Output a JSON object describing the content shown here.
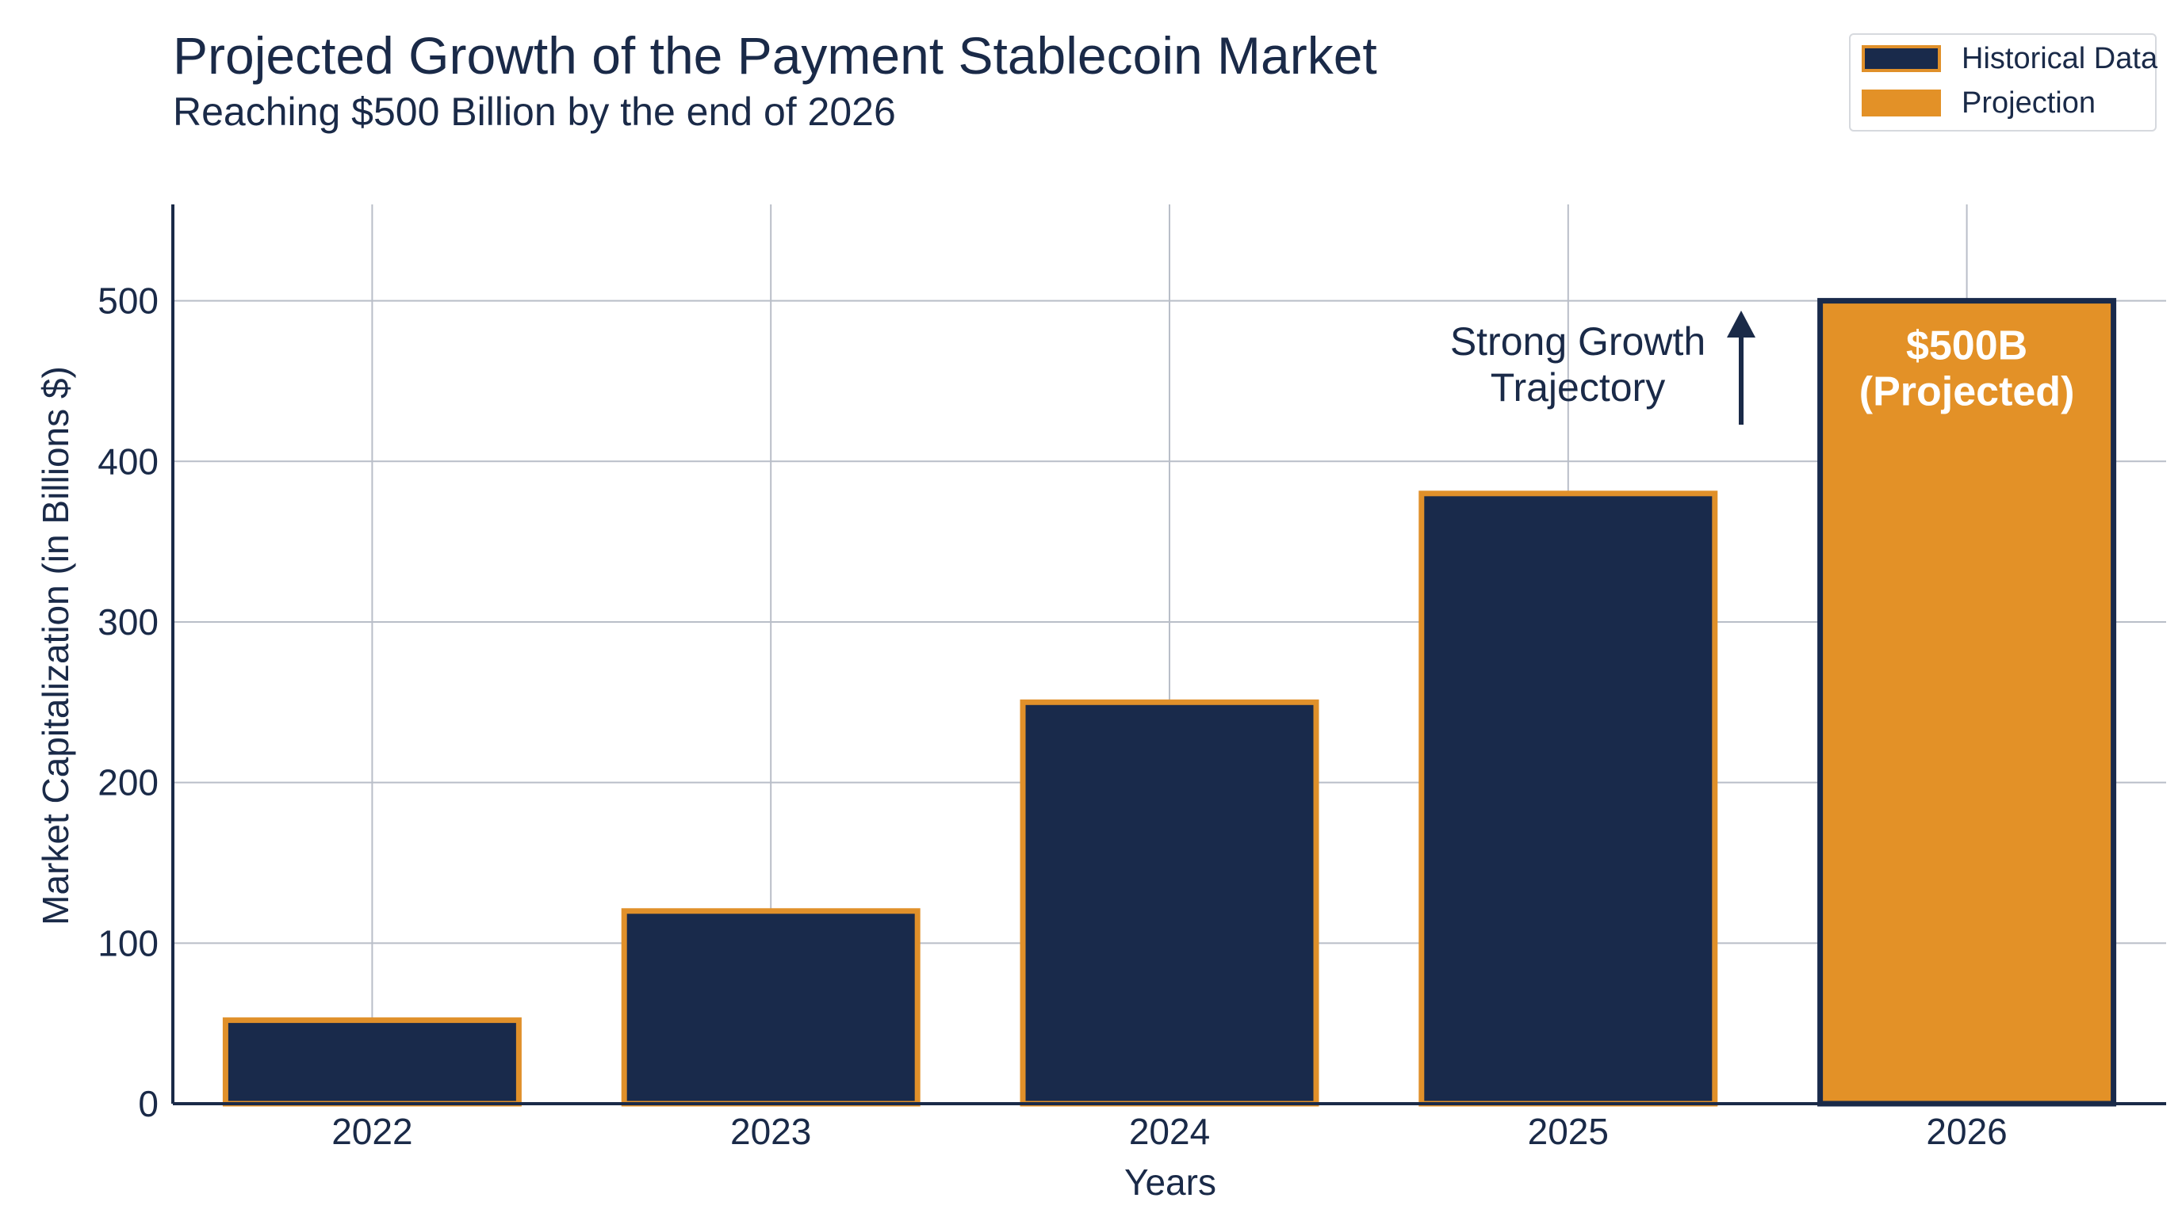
{
  "chart_data": {
    "type": "bar",
    "title": "Projected Growth of the Payment Stablecoin Market",
    "subtitle": "Reaching $500 Billion by the end of 2026",
    "xlabel": "Years",
    "ylabel": "Market Capitalization (in Billions $)",
    "categories": [
      "2022",
      "2023",
      "2024",
      "2025",
      "2026"
    ],
    "values": [
      52,
      120,
      250,
      380,
      500
    ],
    "kinds": [
      "historical",
      "historical",
      "historical",
      "historical",
      "projection"
    ],
    "ylim": [
      0,
      560
    ],
    "yticks": [
      0,
      100,
      200,
      300,
      400,
      500
    ],
    "ytick_labels": [
      "0",
      "100",
      "200",
      "300",
      "400",
      "500"
    ],
    "grid": true,
    "legend_position": "top-right",
    "legend": [
      {
        "label": "Historical Data",
        "kind": "historical"
      },
      {
        "label": "Projection",
        "kind": "projection"
      }
    ],
    "bar_label": {
      "line1": "$500B",
      "line2": "(Projected)",
      "category": "2026"
    },
    "annotation": {
      "line1": "Strong Growth",
      "line2": "Trajectory"
    },
    "colors": {
      "historical_fill": "#192a4b",
      "historical_stroke": "#e0902a",
      "projection_fill": "#e39127",
      "projection_stroke": "#192a4b",
      "text": "#1a2a48",
      "grid": "#b9bec8",
      "axis": "#1a2a48"
    }
  }
}
